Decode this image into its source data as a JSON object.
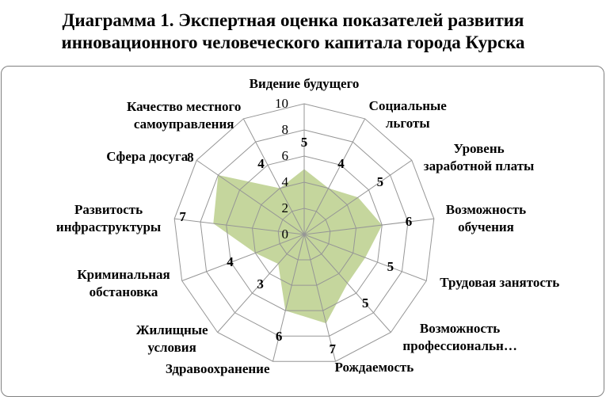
{
  "title": {
    "line1": "Диаграмма 1. Экспертная оценка показателей развития",
    "line2": "инновационного человеческого капитала города Курска"
  },
  "chart_data": {
    "type": "radar",
    "categories": [
      "Видение будущего",
      "Социальные льготы",
      "Уровень заработной платы",
      "Возможность обучения",
      "Трудовая занятость",
      "Возможность профессиональн…",
      "Рождаемость",
      "Здравоохранение",
      "Жилищные условия",
      "Криминальная обстановка",
      "Развитость инфраструктуры",
      "Сфера досуга",
      "Качество местного самоуправления"
    ],
    "category_lines": [
      [
        "Видение будущего"
      ],
      [
        "Социальные",
        "льготы"
      ],
      [
        "Уровень",
        "заработной платы"
      ],
      [
        "Возможность",
        "обучения"
      ],
      [
        "Трудовая занятость"
      ],
      [
        "Возможность",
        "профессиональн…"
      ],
      [
        "Рождаемость"
      ],
      [
        "Здравоохранение"
      ],
      [
        "Жилищные",
        "условия"
      ],
      [
        "Криминальная",
        "обстановка"
      ],
      [
        "Развитость",
        "инфраструктуры"
      ],
      [
        "Сфера досуга"
      ],
      [
        "Качество местного",
        "самоуправления"
      ]
    ],
    "values": [
      5,
      4,
      5,
      6,
      5,
      5,
      7,
      6,
      3,
      4,
      7,
      8,
      4
    ],
    "ticks": [
      0,
      2,
      4,
      6,
      8,
      10
    ],
    "axis_range": [
      0,
      10
    ],
    "grid": true,
    "legend": "none",
    "colors": {
      "fill": "#c5d69d",
      "grid": "#969696",
      "frame": "#808080",
      "text": "#000000"
    }
  }
}
